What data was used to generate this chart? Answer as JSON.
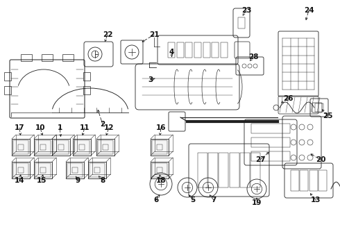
{
  "bg_color": "#ffffff",
  "line_color": "#222222",
  "figsize": [
    4.9,
    3.6
  ],
  "dpi": 100,
  "component_lw": 0.6,
  "label_fontsize": 7.5
}
